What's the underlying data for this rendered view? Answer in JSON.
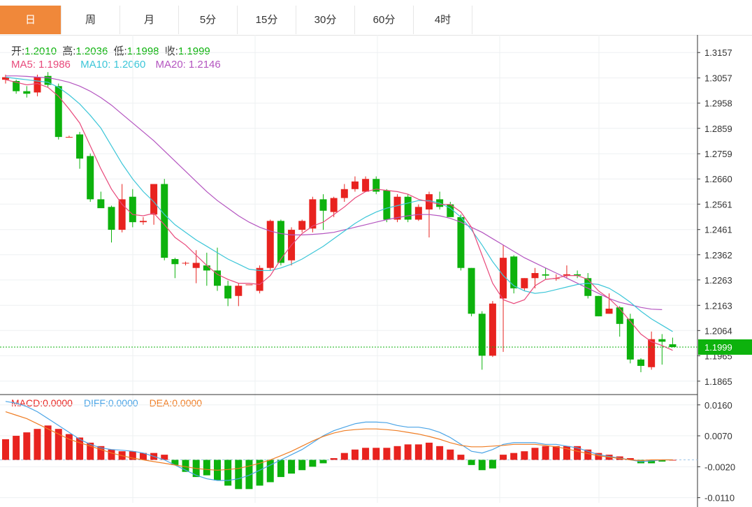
{
  "tabs": [
    {
      "label": "日",
      "active": true
    },
    {
      "label": "周",
      "active": false
    },
    {
      "label": "月",
      "active": false
    },
    {
      "label": "5分",
      "active": false
    },
    {
      "label": "15分",
      "active": false
    },
    {
      "label": "30分",
      "active": false
    },
    {
      "label": "60分",
      "active": false
    },
    {
      "label": "4时",
      "active": false
    }
  ],
  "ohlc_info": {
    "open_label": "开:",
    "open": "1.2010",
    "high_label": "高:",
    "high": "1.2036",
    "low_label": "低:",
    "low": "1.1998",
    "close_label": "收:",
    "close": "1.1999"
  },
  "ma_info": {
    "ma5_label": "MA5:",
    "ma5": "1.1986",
    "ma10_label": "MA10:",
    "ma10": "1.2060",
    "ma20_label": "MA20:",
    "ma20": "1.2146"
  },
  "macd_info": {
    "macd_label": "MACD:",
    "macd": "0.0000",
    "diff_label": "DIFF:",
    "diff": "0.0000",
    "dea_label": "DEA:",
    "dea": "0.0000"
  },
  "colors": {
    "up": "#e8231f",
    "down": "#0db20d",
    "ma5": "#e8497b",
    "ma10": "#3cc6d8",
    "ma20": "#b455c0",
    "diff": "#4aa4e6",
    "dea": "#ef7d24",
    "price_tag": "#0db20d",
    "active_tab": "#f0883a"
  },
  "chart_data": {
    "type": "candlestick",
    "price_axis": {
      "ticks": [
        "1.3157",
        "1.3057",
        "1.2958",
        "1.2859",
        "1.2759",
        "1.2660",
        "1.2561",
        "1.2461",
        "1.2362",
        "1.2263",
        "1.2163",
        "1.2064",
        "1.1965",
        "1.1865"
      ],
      "ylim": [
        1.1815,
        1.3207
      ]
    },
    "current_price": "1.1999",
    "candles": [
      [
        1.305,
        1.307,
        1.3035,
        1.306
      ],
      [
        1.3045,
        1.305,
        1.2995,
        1.3005
      ],
      [
        1.3005,
        1.3025,
        1.298,
        1.2995
      ],
      [
        1.3,
        1.307,
        1.2985,
        1.306
      ],
      [
        1.3065,
        1.308,
        1.302,
        1.303
      ],
      [
        1.3025,
        1.3035,
        1.2815,
        1.2825
      ],
      [
        1.2825,
        1.283,
        1.2825,
        1.2825
      ],
      [
        1.2835,
        1.2845,
        1.27,
        1.274
      ],
      [
        1.275,
        1.276,
        1.257,
        1.258
      ],
      [
        1.258,
        1.261,
        1.255,
        1.2545
      ],
      [
        1.255,
        1.2555,
        1.241,
        1.246
      ],
      [
        1.246,
        1.264,
        1.245,
        1.258
      ],
      [
        1.259,
        1.262,
        1.247,
        1.249
      ],
      [
        1.249,
        1.251,
        1.248,
        1.2495
      ],
      [
        1.252,
        1.264,
        1.248,
        1.264
      ],
      [
        1.264,
        1.266,
        1.234,
        1.235
      ],
      [
        1.2345,
        1.235,
        1.227,
        1.2325
      ],
      [
        1.233,
        1.2335,
        1.232,
        1.233
      ],
      [
        1.231,
        1.238,
        1.225,
        1.233
      ],
      [
        1.232,
        1.237,
        1.224,
        1.23
      ],
      [
        1.23,
        1.239,
        1.222,
        1.224
      ],
      [
        1.224,
        1.226,
        1.216,
        1.219
      ],
      [
        1.22,
        1.225,
        1.216,
        1.224
      ],
      [
        1.2245,
        1.2245,
        1.2245,
        1.2245
      ],
      [
        1.222,
        1.232,
        1.221,
        1.231
      ],
      [
        1.231,
        1.25,
        1.23,
        1.2495
      ],
      [
        1.2495,
        1.25,
        1.232,
        1.233
      ],
      [
        1.234,
        1.247,
        1.232,
        1.246
      ],
      [
        1.246,
        1.25,
        1.245,
        1.2495
      ],
      [
        1.2465,
        1.259,
        1.245,
        1.258
      ],
      [
        1.258,
        1.26,
        1.246,
        1.2535
      ],
      [
        1.253,
        1.259,
        1.251,
        1.2585
      ],
      [
        1.2585,
        1.264,
        1.257,
        1.262
      ],
      [
        1.262,
        1.267,
        1.261,
        1.265
      ],
      [
        1.261,
        1.267,
        1.262,
        1.266
      ],
      [
        1.266,
        1.267,
        1.26,
        1.261
      ],
      [
        1.2615,
        1.262,
        1.249,
        1.25
      ],
      [
        1.25,
        1.26,
        1.249,
        1.259
      ],
      [
        1.259,
        1.26,
        1.249,
        1.25
      ],
      [
        1.25,
        1.256,
        1.2495,
        1.255
      ],
      [
        1.254,
        1.261,
        1.243,
        1.26
      ],
      [
        1.258,
        1.261,
        1.254,
        1.255
      ],
      [
        1.256,
        1.257,
        1.251,
        1.251
      ],
      [
        1.251,
        1.252,
        1.23,
        1.231
      ],
      [
        1.231,
        1.231,
        1.212,
        1.213
      ],
      [
        1.213,
        1.214,
        1.191,
        1.1965
      ],
      [
        1.1965,
        1.218,
        1.196,
        1.217
      ],
      [
        1.219,
        1.24,
        1.198,
        1.235
      ],
      [
        1.2355,
        1.236,
        1.221,
        1.223
      ],
      [
        1.223,
        1.227,
        1.222,
        1.227
      ],
      [
        1.227,
        1.231,
        1.223,
        1.229
      ],
      [
        1.2285,
        1.231,
        1.2265,
        1.228
      ],
      [
        1.227,
        1.2285,
        1.226,
        1.227
      ],
      [
        1.228,
        1.232,
        1.227,
        1.2285
      ],
      [
        1.2285,
        1.23,
        1.227,
        1.228
      ],
      [
        1.227,
        1.229,
        1.219,
        1.22
      ],
      [
        1.22,
        1.22,
        1.212,
        1.212
      ],
      [
        1.213,
        1.221,
        1.213,
        1.215
      ],
      [
        1.2155,
        1.216,
        1.204,
        1.209
      ],
      [
        1.211,
        1.213,
        1.1935,
        1.195
      ],
      [
        1.195,
        1.1955,
        1.19,
        1.1925
      ],
      [
        1.192,
        1.206,
        1.191,
        1.203
      ],
      [
        1.203,
        1.205,
        1.193,
        1.202
      ],
      [
        1.201,
        1.2036,
        1.1998,
        1.1999
      ]
    ],
    "ma5": [
      1.305,
      1.304,
      1.303,
      1.3035,
      1.302,
      1.2985,
      1.2935,
      1.288,
      1.279,
      1.27,
      1.262,
      1.256,
      1.252,
      1.2515,
      1.2525,
      1.248,
      1.243,
      1.24,
      1.236,
      1.232,
      1.2285,
      1.2265,
      1.225,
      1.225,
      1.2245,
      1.228,
      1.2345,
      1.24,
      1.2445,
      1.2475,
      1.249,
      1.252,
      1.255,
      1.2585,
      1.261,
      1.262,
      1.2615,
      1.261,
      1.26,
      1.258,
      1.257,
      1.256,
      1.256,
      1.253,
      1.247,
      1.236,
      1.225,
      1.2185,
      1.217,
      1.2185,
      1.224,
      1.2265,
      1.227,
      1.228,
      1.228,
      1.2265,
      1.222,
      1.219,
      1.215,
      1.21,
      1.205,
      1.202,
      1.2005,
      1.1986
    ],
    "ma10": [
      1.306,
      1.3055,
      1.305,
      1.3045,
      1.304,
      1.302,
      1.299,
      1.2955,
      1.291,
      1.286,
      1.279,
      1.272,
      1.266,
      1.261,
      1.257,
      1.252,
      1.248,
      1.245,
      1.242,
      1.2395,
      1.237,
      1.2345,
      1.2325,
      1.2305,
      1.23,
      1.23,
      1.231,
      1.2325,
      1.2345,
      1.237,
      1.2395,
      1.2425,
      1.2455,
      1.2485,
      1.251,
      1.253,
      1.2545,
      1.2555,
      1.2565,
      1.2575,
      1.2575,
      1.2565,
      1.2545,
      1.251,
      1.246,
      1.24,
      1.2335,
      1.228,
      1.224,
      1.222,
      1.221,
      1.2215,
      1.2225,
      1.2235,
      1.2245,
      1.225,
      1.2245,
      1.223,
      1.2205,
      1.2175,
      1.214,
      1.211,
      1.2085,
      1.206
    ],
    "ma20": [
      1.3065,
      1.3065,
      1.3063,
      1.306,
      1.3058,
      1.305,
      1.304,
      1.3025,
      1.3005,
      1.298,
      1.295,
      1.2915,
      1.288,
      1.2845,
      1.281,
      1.277,
      1.273,
      1.269,
      1.265,
      1.261,
      1.2575,
      1.2545,
      1.2515,
      1.249,
      1.247,
      1.2455,
      1.2445,
      1.244,
      1.244,
      1.2442,
      1.2445,
      1.245,
      1.246,
      1.247,
      1.248,
      1.249,
      1.25,
      1.2508,
      1.2515,
      1.252,
      1.252,
      1.2515,
      1.2505,
      1.249,
      1.247,
      1.245,
      1.2425,
      1.24,
      1.2375,
      1.235,
      1.233,
      1.231,
      1.229,
      1.227,
      1.225,
      1.223,
      1.221,
      1.219,
      1.2175,
      1.2165,
      1.2155,
      1.2148,
      1.2146
    ],
    "macd_axis": {
      "ticks": [
        "0.0160",
        "0.0070",
        "-0.0020",
        "-0.0110"
      ],
      "ylim": [
        -0.0125,
        0.019
      ]
    },
    "macd_hist": [
      0.006,
      0.007,
      0.008,
      0.009,
      0.01,
      0.009,
      0.0075,
      0.0065,
      0.005,
      0.004,
      0.003,
      0.0025,
      0.0025,
      0.002,
      0.002,
      0.0015,
      -0.0015,
      -0.0035,
      -0.005,
      -0.0045,
      -0.006,
      -0.0075,
      -0.0085,
      -0.0085,
      -0.0075,
      -0.0065,
      -0.005,
      -0.004,
      -0.003,
      -0.002,
      -0.001,
      0.0005,
      0.002,
      0.003,
      0.0035,
      0.0035,
      0.0035,
      0.004,
      0.0045,
      0.0045,
      0.005,
      0.004,
      0.003,
      0.0015,
      -0.0015,
      -0.003,
      -0.0025,
      0.0015,
      0.002,
      0.0025,
      0.0035,
      0.004,
      0.004,
      0.004,
      0.004,
      0.003,
      0.002,
      0.0015,
      0.001,
      0.0005,
      -0.001,
      -0.001,
      -0.0005,
      0.0
    ],
    "diff": [
      0.017,
      0.0165,
      0.0155,
      0.014,
      0.012,
      0.01,
      0.008,
      0.006,
      0.0045,
      0.0035,
      0.003,
      0.0028,
      0.0025,
      0.002,
      0.001,
      0.0,
      -0.0015,
      -0.003,
      -0.0045,
      -0.0055,
      -0.006,
      -0.006,
      -0.0055,
      -0.0045,
      -0.003,
      -0.0015,
      0.0,
      0.0015,
      0.003,
      0.005,
      0.007,
      0.0085,
      0.0095,
      0.0105,
      0.011,
      0.011,
      0.0108,
      0.01,
      0.0095,
      0.0095,
      0.009,
      0.008,
      0.0065,
      0.0045,
      0.0025,
      0.002,
      0.003,
      0.0045,
      0.005,
      0.005,
      0.005,
      0.0045,
      0.0045,
      0.004,
      0.0035,
      0.0025,
      0.0015,
      0.001,
      0.0005,
      0.0,
      -0.0005,
      -0.0003,
      0.0,
      0.0
    ],
    "dea": [
      0.014,
      0.013,
      0.012,
      0.0105,
      0.009,
      0.0075,
      0.006,
      0.005,
      0.004,
      0.003,
      0.002,
      0.0012,
      0.0005,
      0.0,
      -0.0005,
      -0.001,
      -0.0015,
      -0.002,
      -0.0025,
      -0.0028,
      -0.003,
      -0.0028,
      -0.0025,
      -0.0018,
      -0.001,
      0.0,
      0.0012,
      0.0025,
      0.004,
      0.0055,
      0.0068,
      0.0078,
      0.0085,
      0.0088,
      0.009,
      0.009,
      0.0088,
      0.0085,
      0.008,
      0.0075,
      0.0068,
      0.006,
      0.005,
      0.0042,
      0.0038,
      0.0038,
      0.004,
      0.0042,
      0.0045,
      0.0045,
      0.0045,
      0.0042,
      0.0038,
      0.0032,
      0.0025,
      0.0018,
      0.0012,
      0.0008,
      0.0004,
      0.0,
      -0.0002,
      0.0,
      0.0,
      0.0
    ]
  }
}
